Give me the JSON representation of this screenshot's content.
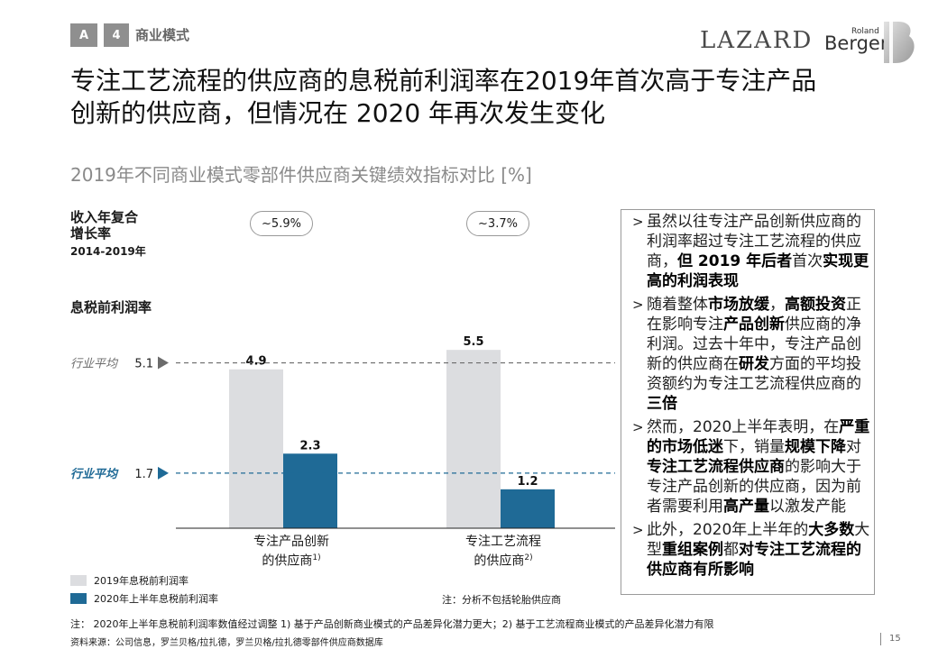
{
  "header": {
    "tag_a": "A",
    "tag_num": "4",
    "section": "商业模式",
    "logo_lazard": "LAZARD",
    "logo_roland": "Roland",
    "logo_berger": "Berger"
  },
  "title_line1": "专注工艺流程的供应商的息税前利润率在2019年首次高于专注产品",
  "title_line2": "创新的供应商，但情况在 2020 年再次发生变化",
  "subtitle": "2019年不同商业模式零部件供应商关键绩效指标对比 [%]",
  "growth": {
    "label_line1": "收入年复合",
    "label_line2": "增长率",
    "period": "2014-2019年",
    "values": [
      "~5.9%",
      "~3.7%"
    ]
  },
  "ebit_label": "息税前利润率",
  "chart_data": {
    "type": "bar",
    "categories": [
      {
        "line1": "专注产品创新",
        "line2": "的供应商",
        "sup": "1)"
      },
      {
        "line1": "专注工艺流程",
        "line2": "的供应商",
        "sup": "2)"
      }
    ],
    "series": [
      {
        "name": "2019年息税前利润率",
        "values": [
          4.9,
          5.5
        ],
        "color": "#dcdde0"
      },
      {
        "name": "2020年上半年息税前利润率",
        "values": [
          2.3,
          1.2
        ],
        "color": "#1f6a96"
      }
    ],
    "reference_lines": [
      {
        "label": "行业平均",
        "value": 5.1,
        "value_text": "5.1",
        "color": "#6b6b6b"
      },
      {
        "label": "行业平均",
        "value": 1.7,
        "value_text": "1.7",
        "color": "#1f6a96"
      }
    ],
    "ylim": [
      0,
      7
    ]
  },
  "chart_note": "注：分析不包括轮胎供应商",
  "panel": {
    "bullets": [
      [
        {
          "t": "虽然以往专注产品创新供应商的利润率超过专注工艺流程的供应商，",
          "b": false
        },
        {
          "t": "但 2019 年后者",
          "b": true
        },
        {
          "t": "首次",
          "b": false
        },
        {
          "t": "实现更高的利润表现",
          "b": true
        }
      ],
      [
        {
          "t": "随着整体",
          "b": false
        },
        {
          "t": "市场放缓",
          "b": true
        },
        {
          "t": "，",
          "b": false
        },
        {
          "t": "高额投资",
          "b": true
        },
        {
          "t": "正在影响专注",
          "b": false
        },
        {
          "t": "产品创新",
          "b": true
        },
        {
          "t": "供应商的净利润。过去十年中，专注产品创新的供应商在",
          "b": false
        },
        {
          "t": "研发",
          "b": true
        },
        {
          "t": "方面的平均投资额约为专注工艺流程供应商的",
          "b": false
        },
        {
          "t": "三倍",
          "b": true
        }
      ],
      [
        {
          "t": "然而，2020上半年表明，在",
          "b": false
        },
        {
          "t": "严重的市场低迷",
          "b": true
        },
        {
          "t": "下，销量",
          "b": false
        },
        {
          "t": "规模下降",
          "b": true
        },
        {
          "t": "对",
          "b": false
        },
        {
          "t": "专注工艺流程供应商",
          "b": true
        },
        {
          "t": "的影响大于专注产品创新的供应商，因为前者需要利用",
          "b": false
        },
        {
          "t": "高产量",
          "b": true
        },
        {
          "t": "以激发产能",
          "b": false
        }
      ],
      [
        {
          "t": "此外，2020年上半年的",
          "b": false
        },
        {
          "t": "大多数",
          "b": true
        },
        {
          "t": "大型",
          "b": false
        },
        {
          "t": "重组案例",
          "b": true
        },
        {
          "t": "都",
          "b": false
        },
        {
          "t": "对专注工艺流程的供应商有所影响",
          "b": true
        }
      ]
    ]
  },
  "footnote": "注：  2020年上半年息税前利润率数值经过调整  1) 基于产品创新商业模式的产品差异化潜力更大；2) 基于工艺流程商业模式的产品差异化潜力有限",
  "source": "资料来源：公司信息，罗兰贝格/拉扎德，罗兰贝格/拉扎德零部件供应商数据库",
  "page_number": "15"
}
